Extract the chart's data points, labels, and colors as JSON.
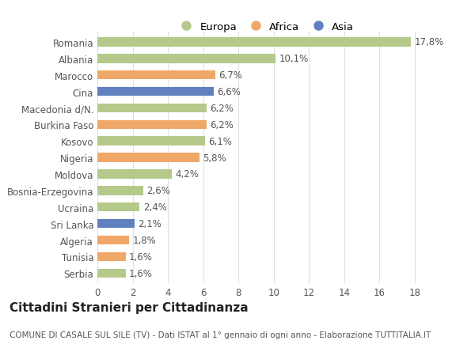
{
  "categories": [
    "Romania",
    "Albania",
    "Marocco",
    "Cina",
    "Macedonia d/N.",
    "Burkina Faso",
    "Kosovo",
    "Nigeria",
    "Moldova",
    "Bosnia-Erzegovina",
    "Ucraina",
    "Sri Lanka",
    "Algeria",
    "Tunisia",
    "Serbia"
  ],
  "values": [
    17.8,
    10.1,
    6.7,
    6.6,
    6.2,
    6.2,
    6.1,
    5.8,
    4.2,
    2.6,
    2.4,
    2.1,
    1.8,
    1.6,
    1.6
  ],
  "labels": [
    "17,8%",
    "10,1%",
    "6,7%",
    "6,6%",
    "6,2%",
    "6,2%",
    "6,1%",
    "5,8%",
    "4,2%",
    "2,6%",
    "2,4%",
    "2,1%",
    "1,8%",
    "1,6%",
    "1,6%"
  ],
  "continent": [
    "Europa",
    "Europa",
    "Africa",
    "Asia",
    "Europa",
    "Africa",
    "Europa",
    "Africa",
    "Europa",
    "Europa",
    "Europa",
    "Asia",
    "Africa",
    "Africa",
    "Europa"
  ],
  "colors": {
    "Europa": "#b5c98a",
    "Africa": "#f0a868",
    "Asia": "#6080c0"
  },
  "title": "Cittadini Stranieri per Cittadinanza",
  "subtitle": "COMUNE DI CASALE SUL SILE (TV) - Dati ISTAT al 1° gennaio di ogni anno - Elaborazione TUTTITALIA.IT",
  "xlim": [
    0,
    19
  ],
  "xticks": [
    0,
    2,
    4,
    6,
    8,
    10,
    12,
    14,
    16,
    18
  ],
  "background_color": "#ffffff",
  "grid_color": "#dddddd",
  "bar_height": 0.55,
  "title_fontsize": 11,
  "subtitle_fontsize": 7.5,
  "ytick_fontsize": 8.5,
  "xtick_fontsize": 8.5,
  "label_fontsize": 8.5,
  "legend_fontsize": 9.5
}
